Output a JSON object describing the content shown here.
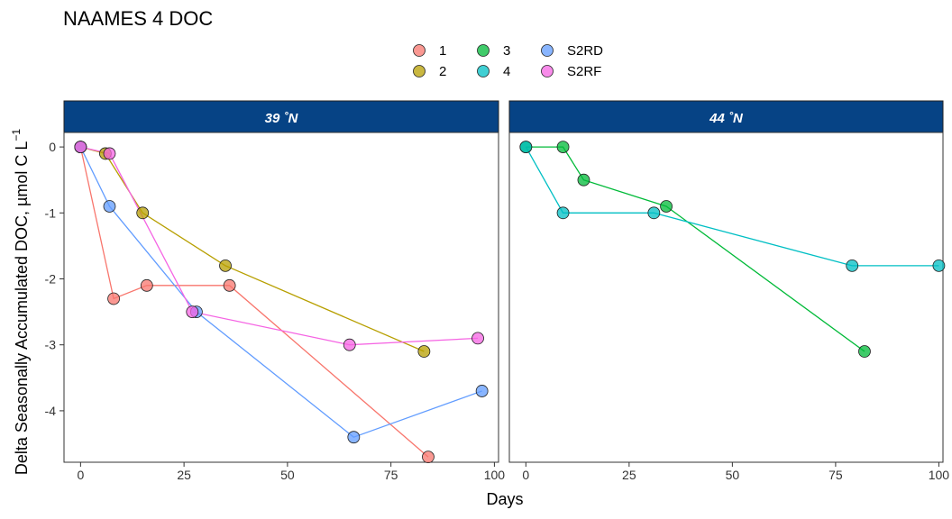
{
  "chart_data": {
    "type": "scatter",
    "title": "NAAMES 4 DOC",
    "xlabel": "Days",
    "ylabel": "Delta Seasonally Accumulated DOC, µmol C L",
    "ylabel_superscript": "−1",
    "xlim": [
      -4,
      101
    ],
    "ylim": [
      -4.78,
      0.22
    ],
    "x_ticks": [
      0,
      25,
      50,
      75,
      100
    ],
    "y_ticks": [
      0,
      -1,
      -2,
      -3,
      -4
    ],
    "grid": false,
    "legend_position": "top",
    "strip_color": "#064385",
    "series_styles": [
      {
        "name": "1",
        "color": "#F8766D"
      },
      {
        "name": "2",
        "color": "#B79F00"
      },
      {
        "name": "3",
        "color": "#00BA38"
      },
      {
        "name": "4",
        "color": "#00BFC4"
      },
      {
        "name": "S2RD",
        "color": "#619CFF"
      },
      {
        "name": "S2RF",
        "color": "#F564E3"
      }
    ],
    "panels": [
      {
        "label": "39 ˚N",
        "series": [
          {
            "name": "1",
            "x": [
              0,
              8,
              16,
              36,
              84
            ],
            "y": [
              0,
              -2.3,
              -2.1,
              -2.1,
              -4.7
            ]
          },
          {
            "name": "2",
            "x": [
              0,
              6,
              15,
              35,
              83
            ],
            "y": [
              0,
              -0.1,
              -1.0,
              -1.8,
              -3.1
            ]
          },
          {
            "name": "S2RD",
            "x": [
              0,
              7,
              28,
              66,
              97
            ],
            "y": [
              0,
              -0.9,
              -2.5,
              -4.4,
              -3.7
            ]
          },
          {
            "name": "S2RF",
            "x": [
              0,
              7,
              27,
              65,
              96
            ],
            "y": [
              0,
              -0.1,
              -2.5,
              -3.0,
              -2.9
            ]
          }
        ]
      },
      {
        "label": "44 ˚N",
        "series": [
          {
            "name": "3",
            "x": [
              0,
              9,
              14,
              34,
              82
            ],
            "y": [
              0,
              0,
              -0.5,
              -0.9,
              -3.1
            ]
          },
          {
            "name": "4",
            "x": [
              0,
              9,
              31,
              79,
              100
            ],
            "y": [
              0,
              -1.0,
              -1.0,
              -1.8,
              -1.8
            ]
          }
        ]
      }
    ]
  }
}
